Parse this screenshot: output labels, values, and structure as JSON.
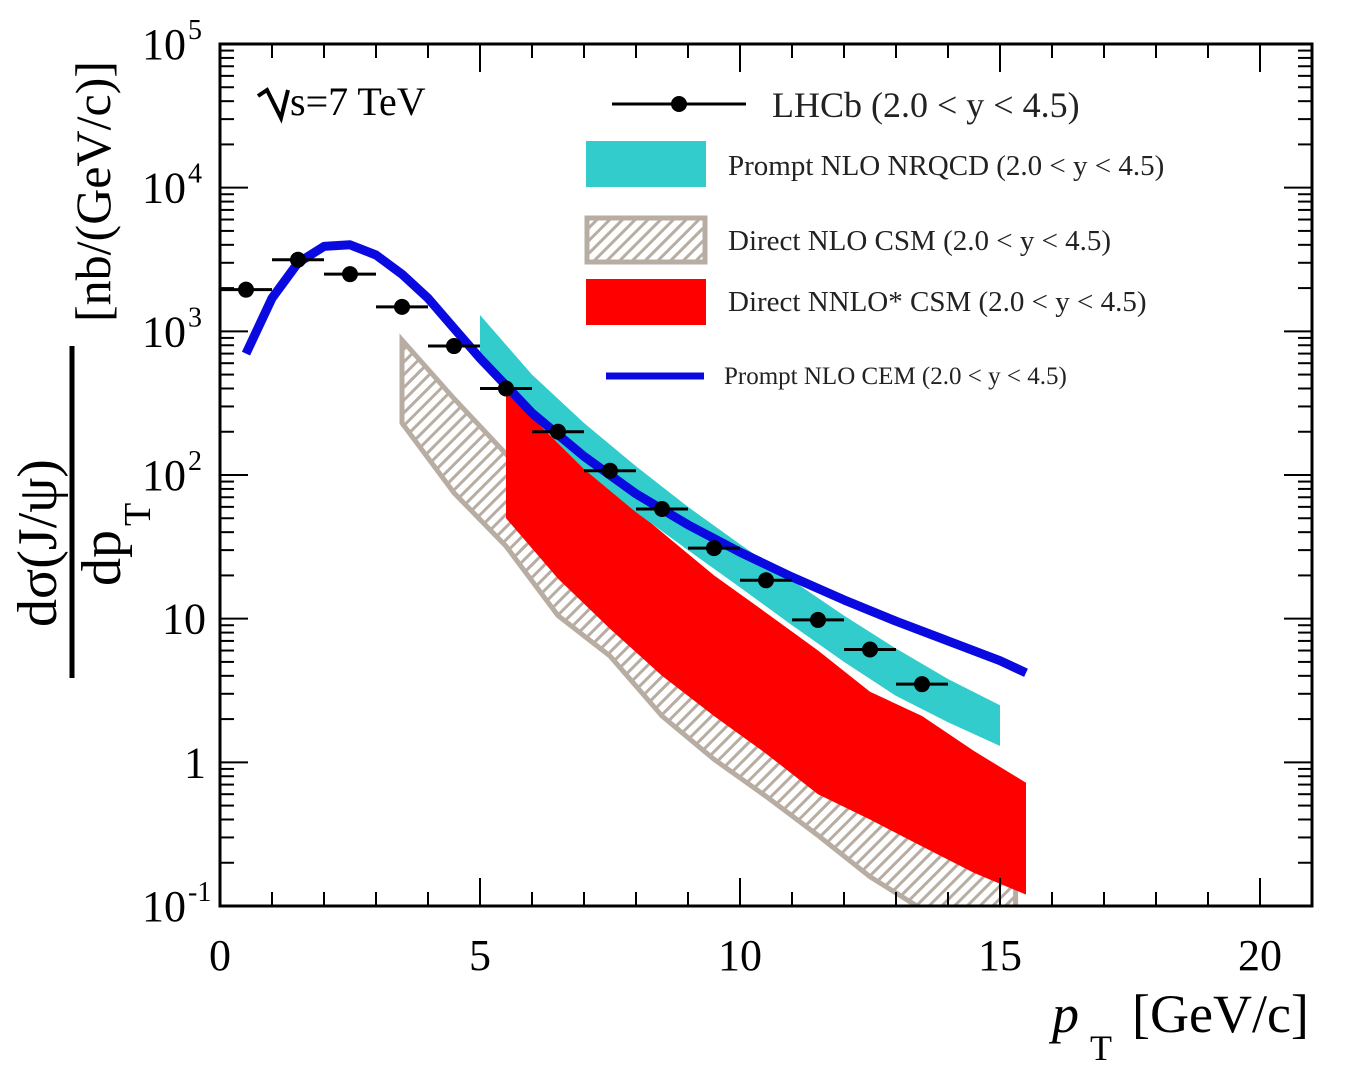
{
  "chart_data": {
    "type": "line",
    "energy_label": "s=7 TeV",
    "xlabel": {
      "main": "p",
      "sub": "T",
      "units": "[GeV/c]"
    },
    "ylabel": {
      "numerator": "dσ(J/ψ)",
      "denominator_main": "dp",
      "denominator_sub": "T",
      "units": "[nb/(GeV/c)]"
    },
    "x_scale": "linear",
    "y_scale": "log",
    "xlim": [
      0,
      21
    ],
    "ylim": [
      0.1,
      100000
    ],
    "x_ticks": [
      {
        "value": 0,
        "label": "0"
      },
      {
        "value": 5,
        "label": "5"
      },
      {
        "value": 10,
        "label": "10"
      },
      {
        "value": 15,
        "label": "15"
      },
      {
        "value": 20,
        "label": "20"
      }
    ],
    "y_ticks": [
      {
        "value": 0.1,
        "label": "10",
        "sup": "-1"
      },
      {
        "value": 1,
        "label": "1",
        "sup": ""
      },
      {
        "value": 10,
        "label": "10",
        "sup": ""
      },
      {
        "value": 100,
        "label": "10",
        "sup": "2"
      },
      {
        "value": 1000,
        "label": "10",
        "sup": "3"
      },
      {
        "value": 10000,
        "label": "10",
        "sup": "4"
      },
      {
        "value": 100000,
        "label": "10",
        "sup": "5"
      }
    ],
    "grid": false,
    "legend_position": "top-right",
    "series": [
      {
        "name": "LHCb (2.0 < y < 4.5)",
        "kind": "points",
        "color": "#000000",
        "points": [
          {
            "x": 0.5,
            "y": 1950,
            "xerr": 0.5
          },
          {
            "x": 1.5,
            "y": 3150,
            "xerr": 0.5
          },
          {
            "x": 2.5,
            "y": 2500,
            "xerr": 0.5
          },
          {
            "x": 3.5,
            "y": 1480,
            "xerr": 0.5
          },
          {
            "x": 4.5,
            "y": 790,
            "xerr": 0.5
          },
          {
            "x": 5.5,
            "y": 400,
            "xerr": 0.5
          },
          {
            "x": 6.5,
            "y": 200,
            "xerr": 0.5
          },
          {
            "x": 7.5,
            "y": 107,
            "xerr": 0.5
          },
          {
            "x": 8.5,
            "y": 58,
            "xerr": 0.5
          },
          {
            "x": 9.5,
            "y": 31,
            "xerr": 0.5
          },
          {
            "x": 10.5,
            "y": 18.5,
            "xerr": 0.5
          },
          {
            "x": 11.5,
            "y": 9.8,
            "xerr": 0.5
          },
          {
            "x": 12.5,
            "y": 6.1,
            "xerr": 0.5
          },
          {
            "x": 13.5,
            "y": 3.5,
            "xerr": 0.5
          }
        ]
      },
      {
        "name": "Prompt NLO NRQCD (2.0 < y < 4.5)",
        "kind": "band",
        "color": "#33cccc",
        "x": [
          5,
          6,
          7,
          8,
          9,
          10,
          11,
          12,
          13,
          14,
          15
        ],
        "upper": [
          1300,
          500,
          230,
          115,
          60,
          33,
          18.5,
          10.5,
          6.2,
          3.8,
          2.5
        ],
        "lower": [
          700,
          250,
          110,
          55,
          30,
          16.5,
          9,
          5,
          2.9,
          1.9,
          1.3
        ]
      },
      {
        "name": "Direct NLO CSM (2.0 < y < 4.5)",
        "kind": "hatched-band",
        "color": "#b8ada3",
        "x": [
          3.5,
          4.5,
          5.5,
          6.5,
          7.5,
          8.5,
          9.5,
          10.5,
          11.5,
          12.5,
          13.5,
          14.5,
          15.3
        ],
        "upper": [
          870,
          340,
          140,
          60,
          28,
          13,
          6.5,
          3.3,
          1.7,
          0.9,
          0.5,
          0.28,
          0.17
        ],
        "lower": [
          230,
          75,
          32,
          10.5,
          5.5,
          2.1,
          1.05,
          0.58,
          0.31,
          0.16,
          0.095,
          0.06,
          0.05
        ]
      },
      {
        "name": "Direct NNLO* CSM (2.0 < y < 4.5)",
        "kind": "band",
        "color": "#ff0000",
        "x": [
          5.5,
          6.5,
          7.5,
          8.5,
          9.5,
          10.5,
          11.5,
          12.5,
          13.5,
          14.5,
          15.5
        ],
        "upper": [
          380,
          170,
          80,
          40,
          20,
          11,
          6,
          3.1,
          2.1,
          1.2,
          0.72
        ],
        "lower": [
          50,
          19,
          8.5,
          4,
          2.1,
          1.15,
          0.6,
          0.4,
          0.26,
          0.17,
          0.12
        ]
      },
      {
        "name": "Prompt NLO CEM (2.0 < y < 4.5)",
        "kind": "line",
        "color": "#0a0ae0",
        "x": [
          0.5,
          1.0,
          1.5,
          2.0,
          2.5,
          3.0,
          3.5,
          4.0,
          4.5,
          5.0,
          5.5,
          6.0,
          7.0,
          8.0,
          9.0,
          10.0,
          11.0,
          12.0,
          13.0,
          14.0,
          15.0,
          15.5
        ],
        "y": [
          700,
          1700,
          3000,
          3900,
          4000,
          3400,
          2500,
          1700,
          1050,
          650,
          420,
          270,
          135,
          74,
          45,
          29,
          19.5,
          13.5,
          9.6,
          7,
          5.1,
          4.2
        ]
      }
    ]
  }
}
